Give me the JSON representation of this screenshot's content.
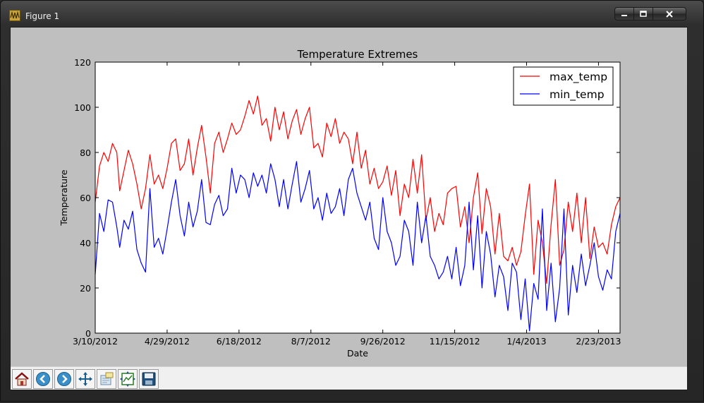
{
  "window": {
    "title": "Figure 1",
    "controls": {
      "minimize": "minimize",
      "maximize": "maximize",
      "close": "close"
    }
  },
  "toolbar": {
    "buttons": [
      {
        "name": "home",
        "icon": "home-icon"
      },
      {
        "name": "back",
        "icon": "back-arrow-icon"
      },
      {
        "name": "forward",
        "icon": "forward-arrow-icon"
      },
      {
        "name": "pan",
        "icon": "pan-move-icon"
      },
      {
        "name": "zoom",
        "icon": "zoom-rect-icon"
      },
      {
        "name": "subplots",
        "icon": "subplots-config-icon"
      },
      {
        "name": "save",
        "icon": "save-floppy-icon"
      }
    ]
  },
  "chart_data": {
    "type": "line",
    "title": "Temperature Extremes",
    "xlabel": "Date",
    "ylabel": "Temperature",
    "x_start": "2012-03-10",
    "x_end": "2013-03-10",
    "xtick_labels": [
      "3/10/2012",
      "4/29/2012",
      "6/18/2012",
      "8/7/2012",
      "9/26/2012",
      "11/15/2012",
      "1/4/2013",
      "2/23/2013"
    ],
    "ylim": [
      0,
      120
    ],
    "yticks": [
      0,
      20,
      40,
      60,
      80,
      100,
      120
    ],
    "grid": false,
    "legend_position": "upper right",
    "series": [
      {
        "name": "max_temp",
        "color": "#ff0000",
        "points": [
          [
            "2012-03-10",
            58
          ],
          [
            "2012-03-13",
            74
          ],
          [
            "2012-03-16",
            80
          ],
          [
            "2012-03-19",
            76
          ],
          [
            "2012-03-22",
            84
          ],
          [
            "2012-03-25",
            80
          ],
          [
            "2012-03-27",
            63
          ],
          [
            "2012-03-30",
            72
          ],
          [
            "2012-04-02",
            81
          ],
          [
            "2012-04-05",
            75
          ],
          [
            "2012-04-08",
            66
          ],
          [
            "2012-04-11",
            55
          ],
          [
            "2012-04-14",
            64
          ],
          [
            "2012-04-17",
            79
          ],
          [
            "2012-04-20",
            66
          ],
          [
            "2012-04-23",
            70
          ],
          [
            "2012-04-26",
            64
          ],
          [
            "2012-04-29",
            73
          ],
          [
            "2012-05-02",
            84
          ],
          [
            "2012-05-05",
            86
          ],
          [
            "2012-05-08",
            72
          ],
          [
            "2012-05-11",
            75
          ],
          [
            "2012-05-14",
            86
          ],
          [
            "2012-05-17",
            70
          ],
          [
            "2012-05-20",
            82
          ],
          [
            "2012-05-23",
            92
          ],
          [
            "2012-05-26",
            78
          ],
          [
            "2012-05-29",
            62
          ],
          [
            "2012-06-01",
            84
          ],
          [
            "2012-06-04",
            89
          ],
          [
            "2012-06-07",
            80
          ],
          [
            "2012-06-10",
            86
          ],
          [
            "2012-06-13",
            93
          ],
          [
            "2012-06-16",
            88
          ],
          [
            "2012-06-19",
            90
          ],
          [
            "2012-06-22",
            96
          ],
          [
            "2012-06-25",
            103
          ],
          [
            "2012-06-28",
            97
          ],
          [
            "2012-07-01",
            105
          ],
          [
            "2012-07-04",
            92
          ],
          [
            "2012-07-07",
            95
          ],
          [
            "2012-07-10",
            85
          ],
          [
            "2012-07-13",
            100
          ],
          [
            "2012-07-16",
            90
          ],
          [
            "2012-07-19",
            98
          ],
          [
            "2012-07-22",
            86
          ],
          [
            "2012-07-25",
            94
          ],
          [
            "2012-07-28",
            99
          ],
          [
            "2012-07-31",
            88
          ],
          [
            "2012-08-03",
            95
          ],
          [
            "2012-08-06",
            100
          ],
          [
            "2012-08-09",
            82
          ],
          [
            "2012-08-12",
            84
          ],
          [
            "2012-08-15",
            78
          ],
          [
            "2012-08-18",
            93
          ],
          [
            "2012-08-21",
            87
          ],
          [
            "2012-08-24",
            95
          ],
          [
            "2012-08-27",
            84
          ],
          [
            "2012-08-30",
            89
          ],
          [
            "2012-09-02",
            86
          ],
          [
            "2012-09-05",
            75
          ],
          [
            "2012-09-08",
            89
          ],
          [
            "2012-09-11",
            73
          ],
          [
            "2012-09-14",
            81
          ],
          [
            "2012-09-17",
            66
          ],
          [
            "2012-09-20",
            73
          ],
          [
            "2012-09-23",
            64
          ],
          [
            "2012-09-26",
            67
          ],
          [
            "2012-09-29",
            74
          ],
          [
            "2012-10-02",
            61
          ],
          [
            "2012-10-05",
            72
          ],
          [
            "2012-10-08",
            52
          ],
          [
            "2012-10-11",
            66
          ],
          [
            "2012-10-14",
            60
          ],
          [
            "2012-10-17",
            77
          ],
          [
            "2012-10-20",
            62
          ],
          [
            "2012-10-23",
            79
          ],
          [
            "2012-10-26",
            50
          ],
          [
            "2012-10-29",
            60
          ],
          [
            "2012-11-01",
            45
          ],
          [
            "2012-11-04",
            53
          ],
          [
            "2012-11-07",
            48
          ],
          [
            "2012-11-10",
            62
          ],
          [
            "2012-11-13",
            64
          ],
          [
            "2012-11-16",
            65
          ],
          [
            "2012-11-19",
            47
          ],
          [
            "2012-11-22",
            56
          ],
          [
            "2012-11-25",
            40
          ],
          [
            "2012-11-28",
            60
          ],
          [
            "2012-12-01",
            71
          ],
          [
            "2012-12-04",
            44
          ],
          [
            "2012-12-07",
            64
          ],
          [
            "2012-12-10",
            56
          ],
          [
            "2012-12-13",
            35
          ],
          [
            "2012-12-16",
            53
          ],
          [
            "2012-12-19",
            34
          ],
          [
            "2012-12-22",
            32
          ],
          [
            "2012-12-25",
            38
          ],
          [
            "2012-12-28",
            30
          ],
          [
            "2012-12-31",
            36
          ],
          [
            "2013-01-03",
            52
          ],
          [
            "2013-01-06",
            66
          ],
          [
            "2013-01-09",
            26
          ],
          [
            "2013-01-12",
            50
          ],
          [
            "2013-01-15",
            40
          ],
          [
            "2013-01-18",
            22
          ],
          [
            "2013-01-21",
            48
          ],
          [
            "2013-01-24",
            68
          ],
          [
            "2013-01-27",
            30
          ],
          [
            "2013-01-30",
            37
          ],
          [
            "2013-02-02",
            58
          ],
          [
            "2013-02-05",
            45
          ],
          [
            "2013-02-08",
            62
          ],
          [
            "2013-02-11",
            40
          ],
          [
            "2013-02-14",
            60
          ],
          [
            "2013-02-17",
            33
          ],
          [
            "2013-02-20",
            47
          ],
          [
            "2013-02-23",
            38
          ],
          [
            "2013-02-26",
            40
          ],
          [
            "2013-03-01",
            35
          ],
          [
            "2013-03-04",
            48
          ],
          [
            "2013-03-07",
            56
          ],
          [
            "2013-03-10",
            60
          ]
        ]
      },
      {
        "name": "min_temp",
        "color": "#0000ff",
        "points": [
          [
            "2012-03-10",
            26
          ],
          [
            "2012-03-13",
            53
          ],
          [
            "2012-03-16",
            45
          ],
          [
            "2012-03-19",
            59
          ],
          [
            "2012-03-22",
            58
          ],
          [
            "2012-03-25",
            47
          ],
          [
            "2012-03-27",
            38
          ],
          [
            "2012-03-30",
            50
          ],
          [
            "2012-04-02",
            46
          ],
          [
            "2012-04-05",
            54
          ],
          [
            "2012-04-08",
            37
          ],
          [
            "2012-04-11",
            31
          ],
          [
            "2012-04-14",
            27
          ],
          [
            "2012-04-17",
            64
          ],
          [
            "2012-04-20",
            38
          ],
          [
            "2012-04-23",
            42
          ],
          [
            "2012-04-26",
            35
          ],
          [
            "2012-04-29",
            46
          ],
          [
            "2012-05-02",
            58
          ],
          [
            "2012-05-05",
            68
          ],
          [
            "2012-05-08",
            52
          ],
          [
            "2012-05-11",
            43
          ],
          [
            "2012-05-14",
            58
          ],
          [
            "2012-05-17",
            47
          ],
          [
            "2012-05-20",
            54
          ],
          [
            "2012-05-23",
            68
          ],
          [
            "2012-05-26",
            49
          ],
          [
            "2012-05-29",
            48
          ],
          [
            "2012-06-01",
            57
          ],
          [
            "2012-06-04",
            61
          ],
          [
            "2012-06-07",
            52
          ],
          [
            "2012-06-10",
            55
          ],
          [
            "2012-06-13",
            73
          ],
          [
            "2012-06-16",
            62
          ],
          [
            "2012-06-19",
            70
          ],
          [
            "2012-06-22",
            68
          ],
          [
            "2012-06-25",
            60
          ],
          [
            "2012-06-28",
            71
          ],
          [
            "2012-07-01",
            65
          ],
          [
            "2012-07-04",
            70
          ],
          [
            "2012-07-07",
            62
          ],
          [
            "2012-07-10",
            75
          ],
          [
            "2012-07-13",
            68
          ],
          [
            "2012-07-16",
            56
          ],
          [
            "2012-07-19",
            68
          ],
          [
            "2012-07-22",
            55
          ],
          [
            "2012-07-25",
            66
          ],
          [
            "2012-07-28",
            76
          ],
          [
            "2012-07-31",
            58
          ],
          [
            "2012-08-03",
            64
          ],
          [
            "2012-08-06",
            72
          ],
          [
            "2012-08-09",
            55
          ],
          [
            "2012-08-12",
            60
          ],
          [
            "2012-08-15",
            50
          ],
          [
            "2012-08-18",
            62
          ],
          [
            "2012-08-21",
            53
          ],
          [
            "2012-08-24",
            56
          ],
          [
            "2012-08-27",
            64
          ],
          [
            "2012-08-30",
            52
          ],
          [
            "2012-09-02",
            68
          ],
          [
            "2012-09-05",
            73
          ],
          [
            "2012-09-08",
            62
          ],
          [
            "2012-09-11",
            56
          ],
          [
            "2012-09-14",
            50
          ],
          [
            "2012-09-17",
            58
          ],
          [
            "2012-09-20",
            42
          ],
          [
            "2012-09-23",
            37
          ],
          [
            "2012-09-26",
            60
          ],
          [
            "2012-09-29",
            45
          ],
          [
            "2012-10-02",
            40
          ],
          [
            "2012-10-05",
            30
          ],
          [
            "2012-10-08",
            34
          ],
          [
            "2012-10-11",
            50
          ],
          [
            "2012-10-14",
            45
          ],
          [
            "2012-10-17",
            30
          ],
          [
            "2012-10-20",
            58
          ],
          [
            "2012-10-23",
            40
          ],
          [
            "2012-10-26",
            52
          ],
          [
            "2012-10-29",
            34
          ],
          [
            "2012-11-01",
            30
          ],
          [
            "2012-11-04",
            24
          ],
          [
            "2012-11-07",
            27
          ],
          [
            "2012-11-10",
            34
          ],
          [
            "2012-11-13",
            24
          ],
          [
            "2012-11-16",
            38
          ],
          [
            "2012-11-19",
            21
          ],
          [
            "2012-11-22",
            30
          ],
          [
            "2012-11-25",
            58
          ],
          [
            "2012-11-28",
            28
          ],
          [
            "2012-12-01",
            52
          ],
          [
            "2012-12-04",
            20
          ],
          [
            "2012-12-07",
            45
          ],
          [
            "2012-12-10",
            35
          ],
          [
            "2012-12-13",
            16
          ],
          [
            "2012-12-16",
            30
          ],
          [
            "2012-12-19",
            25
          ],
          [
            "2012-12-22",
            10
          ],
          [
            "2012-12-25",
            31
          ],
          [
            "2012-12-28",
            27
          ],
          [
            "2012-12-31",
            6
          ],
          [
            "2013-01-03",
            24
          ],
          [
            "2013-01-06",
            1
          ],
          [
            "2013-01-09",
            22
          ],
          [
            "2013-01-12",
            15
          ],
          [
            "2013-01-15",
            55
          ],
          [
            "2013-01-18",
            10
          ],
          [
            "2013-01-21",
            31
          ],
          [
            "2013-01-24",
            5
          ],
          [
            "2013-01-27",
            20
          ],
          [
            "2013-01-30",
            55
          ],
          [
            "2013-02-02",
            8
          ],
          [
            "2013-02-05",
            30
          ],
          [
            "2013-02-08",
            18
          ],
          [
            "2013-02-11",
            35
          ],
          [
            "2013-02-14",
            21
          ],
          [
            "2013-02-17",
            30
          ],
          [
            "2013-02-20",
            40
          ],
          [
            "2013-02-23",
            25
          ],
          [
            "2013-02-26",
            19
          ],
          [
            "2013-03-01",
            28
          ],
          [
            "2013-03-04",
            24
          ],
          [
            "2013-03-07",
            45
          ],
          [
            "2013-03-10",
            53
          ]
        ]
      }
    ]
  }
}
